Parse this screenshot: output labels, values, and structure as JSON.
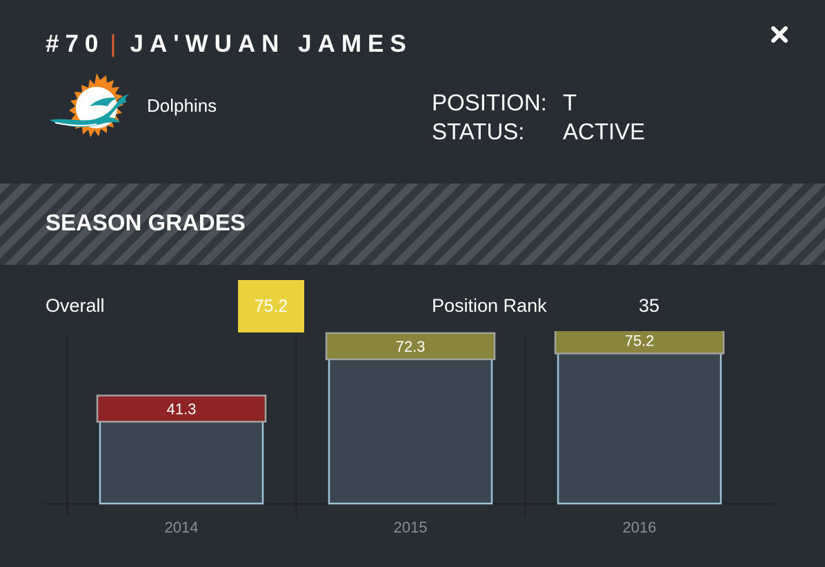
{
  "player": {
    "number": "#70",
    "separator": "|",
    "name": "JA'WUAN JAMES"
  },
  "team": {
    "name": "Dolphins",
    "logo_icon": "dolphins-logo-icon"
  },
  "info": {
    "position_label": "POSITION:",
    "position_value": "T",
    "status_label": "STATUS:",
    "status_value": "ACTIVE"
  },
  "section": {
    "title": "SEASON GRADES"
  },
  "summary": {
    "overall_label": "Overall",
    "overall_value": "75.2",
    "rank_label": "Position Rank",
    "rank_value": "35"
  },
  "colors": {
    "background": "#282c33",
    "accent": "#e0602c",
    "overall_badge": "#e9d23e",
    "grade_low": "#8f2426",
    "grade_mid": "#8a853c",
    "bar_fill": "#3b4650",
    "bar_border": "#9ec3d6"
  },
  "chart_data": {
    "type": "bar",
    "categories": [
      "2014",
      "2015",
      "2016"
    ],
    "values": [
      41.3,
      72.3,
      75.2
    ],
    "labels": [
      "41.3",
      "72.3",
      "75.2"
    ],
    "grade_colors": [
      "#8f2426",
      "#8a853c",
      "#8a853c"
    ],
    "ylim": [
      0,
      100
    ],
    "grid": false,
    "legend": "none"
  }
}
